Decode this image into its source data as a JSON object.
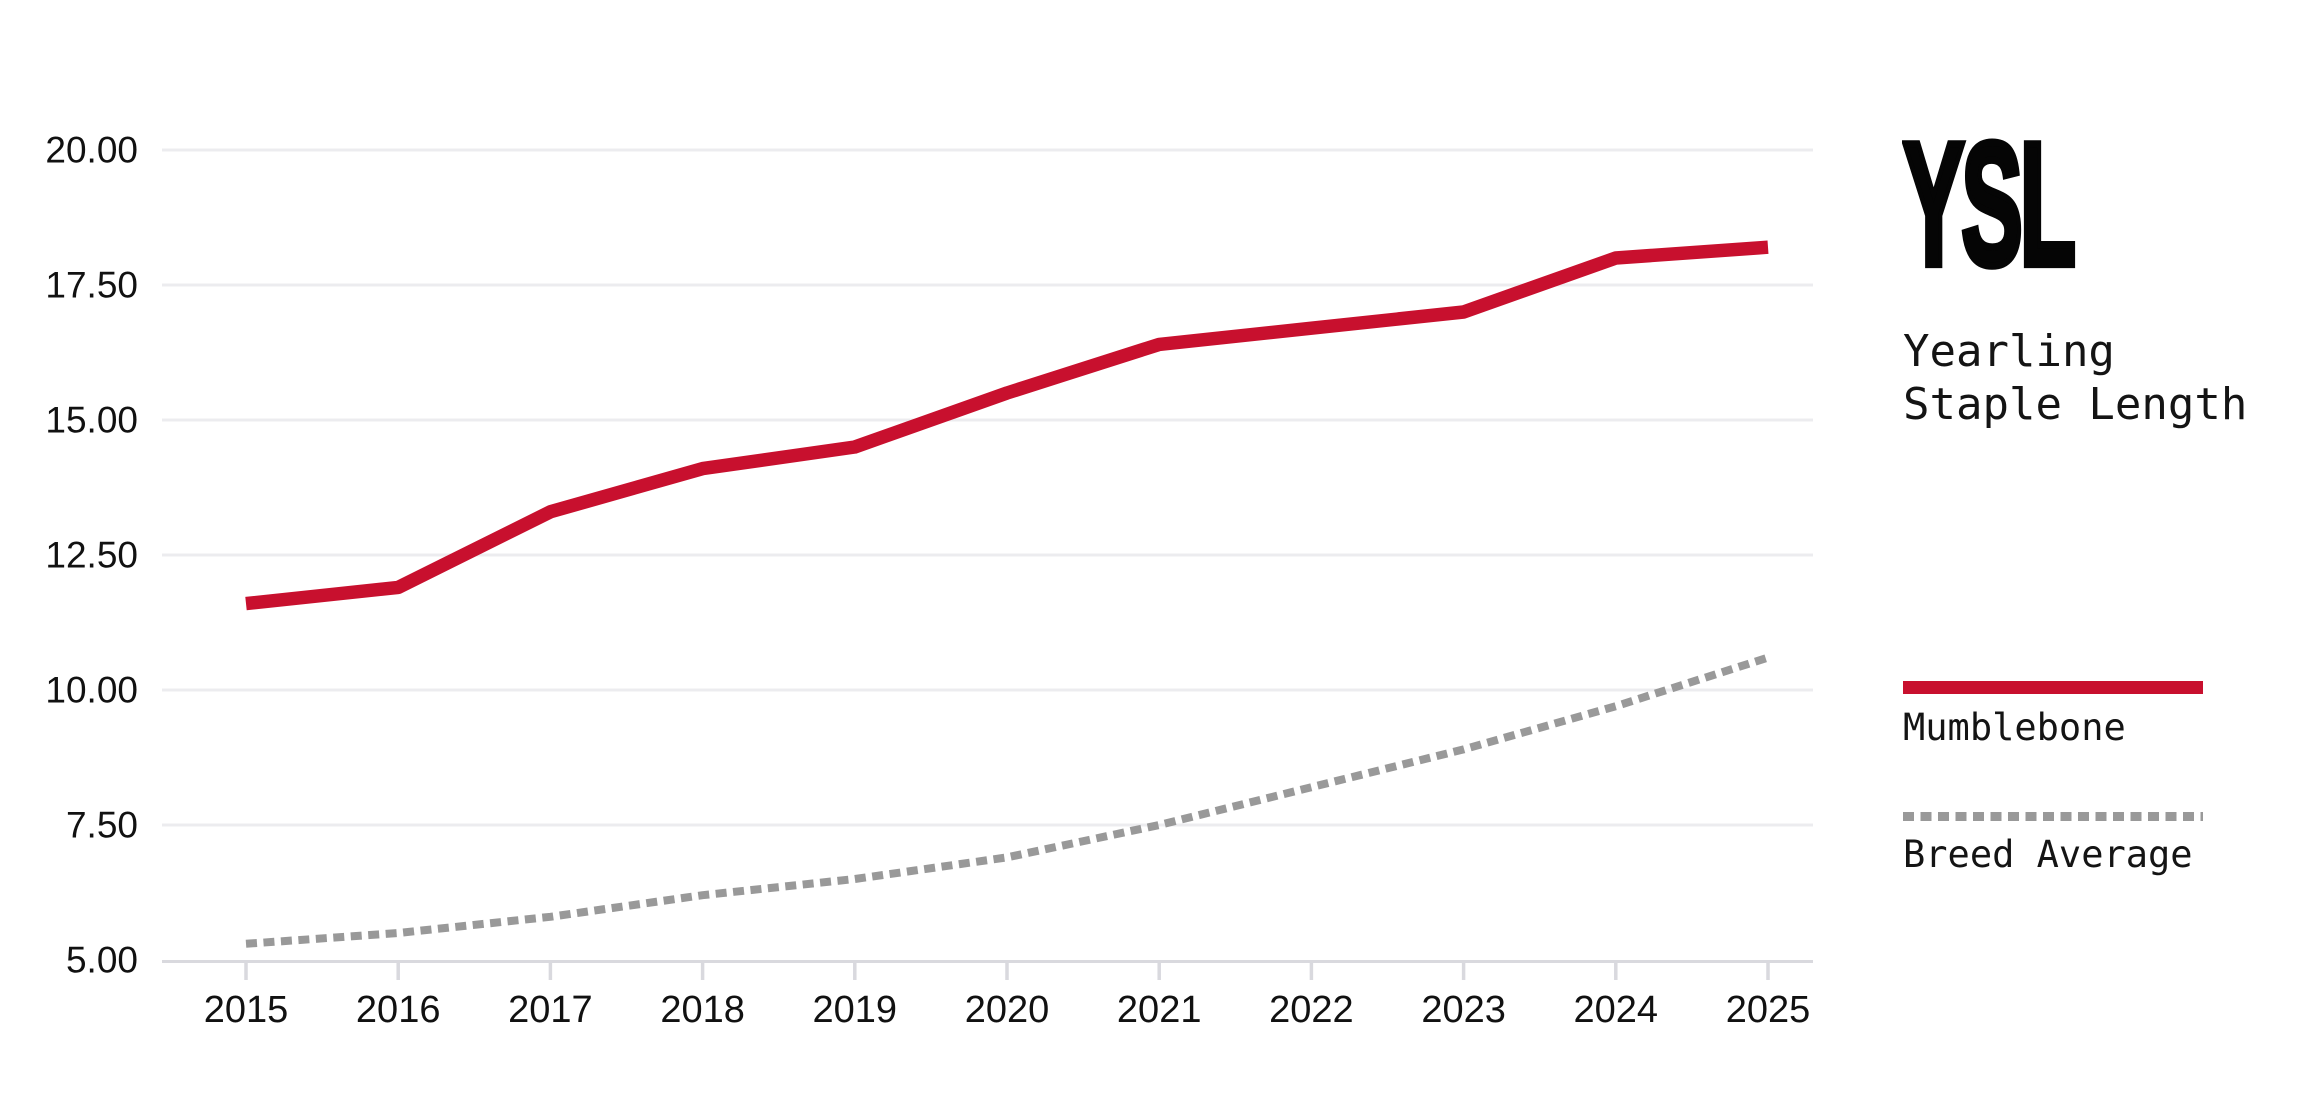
{
  "title": {
    "abbr": "YSL",
    "subtitle_line1": "Yearling",
    "subtitle_line2": "Staple Length"
  },
  "legend": [
    {
      "label": "Mumblebone",
      "style": "solid",
      "color": "#C8102E"
    },
    {
      "label": "Breed Average",
      "style": "dotted",
      "color": "#999999"
    }
  ],
  "colors": {
    "accent_red": "#C8102E",
    "muted_gray": "#999999",
    "gridline": "#ececef",
    "axis_line": "#d9d9de",
    "text": "#111111"
  },
  "chart_data": {
    "type": "line",
    "title": "YSL — Yearling Staple Length",
    "x": [
      2015,
      2016,
      2017,
      2018,
      2019,
      2020,
      2021,
      2022,
      2023,
      2024,
      2025
    ],
    "series": [
      {
        "name": "Mumblebone",
        "color": "#C8102E",
        "style": "solid",
        "values": [
          11.6,
          11.9,
          13.3,
          14.1,
          14.5,
          15.5,
          16.4,
          16.7,
          17.0,
          18.0,
          18.2
        ]
      },
      {
        "name": "Breed Average",
        "color": "#999999",
        "style": "dotted",
        "values": [
          5.3,
          5.5,
          5.8,
          6.2,
          6.5,
          6.9,
          7.5,
          8.2,
          8.9,
          9.7,
          10.6
        ]
      }
    ],
    "xlabel": "",
    "ylabel": "",
    "ylim": [
      5,
      20
    ],
    "yticks": [
      5,
      7.5,
      10,
      12.5,
      15,
      17.5,
      20
    ],
    "ytick_labels": [
      "5.00",
      "7.50",
      "10.00",
      "12.50",
      "15.00",
      "17.50",
      "20.00"
    ],
    "grid": true,
    "legend_position": "right"
  }
}
